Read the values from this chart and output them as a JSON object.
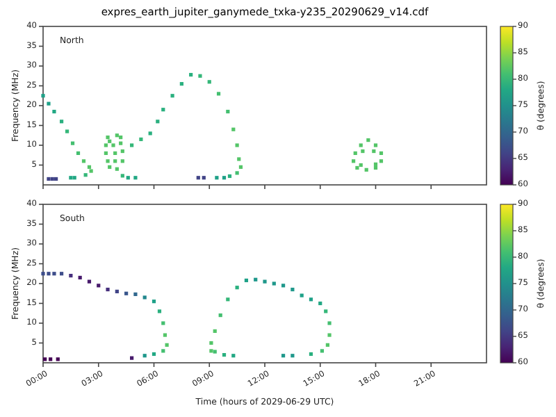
{
  "chart_data": [
    {
      "type": "scatter",
      "title": "expres_earth_jupiter_ganymede_txka-y235_20290629_v14.cdf",
      "ylabel": "Frequency (MHz)",
      "clabel": "θ (degrees)",
      "annotations": [
        "North"
      ],
      "xlim": [
        0,
        24
      ],
      "xticks": [
        {
          "value": 0,
          "label": null
        },
        {
          "value": 3,
          "label": null
        },
        {
          "value": 6,
          "label": null
        },
        {
          "value": 9,
          "label": null
        },
        {
          "value": 12,
          "label": null
        },
        {
          "value": 15,
          "label": null
        },
        {
          "value": 18,
          "label": null
        },
        {
          "value": 21,
          "label": null
        }
      ],
      "ylim": [
        0,
        40
      ],
      "yticks": [
        5,
        10,
        15,
        20,
        25,
        30,
        35,
        40
      ],
      "clim": [
        60,
        90
      ],
      "cticks": [
        60,
        65,
        70,
        75,
        80,
        85,
        90
      ],
      "tick_labels": "y",
      "grid": false,
      "marker": "square",
      "series": [
        {
          "x": [
            0,
            0.3,
            0.6,
            1.0,
            1.3,
            1.6,
            1.9,
            2.2,
            2.5,
            2.6,
            2.3,
            1.5,
            1.7,
            0.3,
            0.5,
            0.7,
            3.5,
            4.0,
            3.4,
            3.8,
            4.2,
            3.4,
            3.9,
            4.3,
            3.5,
            3.9,
            4.3,
            3.6,
            4.0,
            3.6,
            4.2,
            4.3,
            4.6,
            5.0,
            4.8,
            5.3,
            5.8,
            6.2,
            6.5,
            7.0,
            7.5,
            8.0,
            8.5,
            9.0,
            9.5,
            10.0,
            10.3,
            10.5,
            10.6,
            10.7,
            10.5,
            10.1,
            9.8,
            9.4,
            8.4,
            8.7,
            17.6,
            17.2,
            18.0,
            16.9,
            18.3,
            16.8,
            18.3,
            17.0,
            17.5,
            18.0,
            17.3,
            17.9,
            17.2,
            18.0
          ],
          "values": [
            22.5,
            20.5,
            18.5,
            16,
            13.5,
            10.5,
            8,
            6,
            4.5,
            3.5,
            2.5,
            1.8,
            1.8,
            1.5,
            1.5,
            1.5,
            12,
            12.5,
            10,
            10,
            10.5,
            8,
            8,
            8.5,
            6,
            6,
            6,
            4.5,
            4,
            11,
            12,
            2.3,
            1.8,
            1.8,
            10,
            11.5,
            13,
            16,
            19,
            22.5,
            25.5,
            27.8,
            27.5,
            26,
            23,
            18.5,
            14,
            10,
            6.5,
            4.5,
            3,
            2.2,
            1.8,
            1.8,
            1.8,
            1.8,
            11.3,
            10,
            10,
            8,
            8,
            6,
            6,
            4.3,
            3.8,
            4.3,
            8.5,
            8.5,
            5,
            5.2
          ],
          "cvalues": [
            77,
            77,
            78,
            79,
            80,
            81,
            81,
            82,
            82,
            82,
            80,
            78,
            78,
            66,
            66,
            66,
            82,
            82,
            82,
            82,
            82,
            82,
            82,
            82,
            82,
            82,
            82,
            82,
            82,
            82,
            82,
            80,
            78,
            78,
            80,
            80,
            79,
            79,
            79,
            79,
            79,
            79,
            80,
            80,
            81,
            81,
            82,
            82,
            82,
            82,
            81,
            79,
            77,
            77,
            66,
            66,
            82,
            82,
            82,
            82,
            82,
            82,
            82,
            82,
            82,
            82,
            82,
            82,
            82,
            82
          ]
        }
      ]
    },
    {
      "type": "scatter",
      "xlabel": "Time (hours of 2029-06-29 UTC)",
      "ylabel": "Frequency (MHz)",
      "clabel": "θ (degrees)",
      "annotations": [
        "South"
      ],
      "xlim": [
        0,
        24
      ],
      "xticks": [
        {
          "value": 0,
          "label": "00:00"
        },
        {
          "value": 3,
          "label": "03:00"
        },
        {
          "value": 6,
          "label": "06:00"
        },
        {
          "value": 9,
          "label": "09:00"
        },
        {
          "value": 12,
          "label": "12:00"
        },
        {
          "value": 15,
          "label": "15:00"
        },
        {
          "value": 18,
          "label": "18:00"
        },
        {
          "value": 21,
          "label": "21:00"
        }
      ],
      "ylim": [
        0,
        40
      ],
      "yticks": [
        5,
        10,
        15,
        20,
        25,
        30,
        35,
        40
      ],
      "clim": [
        60,
        90
      ],
      "cticks": [
        60,
        65,
        70,
        75,
        80,
        85,
        90
      ],
      "grid": false,
      "marker": "square",
      "series": [
        {
          "x": [
            0,
            0.3,
            0.6,
            1.0,
            1.5,
            2.0,
            2.5,
            3.0,
            3.5,
            4.0,
            4.5,
            5.0,
            5.5,
            6.0,
            6.3,
            6.5,
            6.6,
            6.7,
            6.5,
            6.0,
            5.5,
            4.8,
            0.1,
            0.4,
            0.8,
            9.1,
            9.1,
            9.3,
            9.6,
            10.0,
            10.5,
            11.0,
            11.5,
            12.0,
            12.5,
            13.0,
            13.5,
            14.0,
            14.5,
            15.0,
            15.3,
            15.5,
            15.5,
            15.4,
            15.1,
            14.5,
            13.5,
            13.0,
            10.3,
            9.8,
            9.3
          ],
          "values": [
            22.5,
            22.5,
            22.5,
            22.5,
            22,
            21.5,
            20.5,
            19.5,
            18.5,
            18,
            17.5,
            17.3,
            16.5,
            15.5,
            13,
            10,
            7,
            4.5,
            3,
            2.2,
            1.8,
            1.2,
            0.9,
            0.9,
            0.9,
            3,
            5,
            8,
            12,
            16,
            19,
            20.8,
            21,
            20.5,
            20,
            19.5,
            18.5,
            17,
            16,
            15,
            13,
            10,
            7,
            4.5,
            3,
            2.2,
            1.8,
            1.8,
            1.8,
            2,
            2.8
          ],
          "cvalues": [
            67,
            67,
            67,
            67,
            64,
            62,
            62,
            62,
            64,
            66,
            68,
            70,
            74,
            77,
            79,
            81,
            82,
            82,
            81,
            78,
            76,
            62,
            60,
            60,
            60,
            82,
            82,
            82,
            81,
            80,
            79,
            77,
            76,
            76,
            76,
            76,
            76,
            77,
            77,
            78,
            80,
            81,
            82,
            82,
            81,
            79,
            76,
            76,
            78,
            79,
            81
          ]
        }
      ]
    }
  ]
}
